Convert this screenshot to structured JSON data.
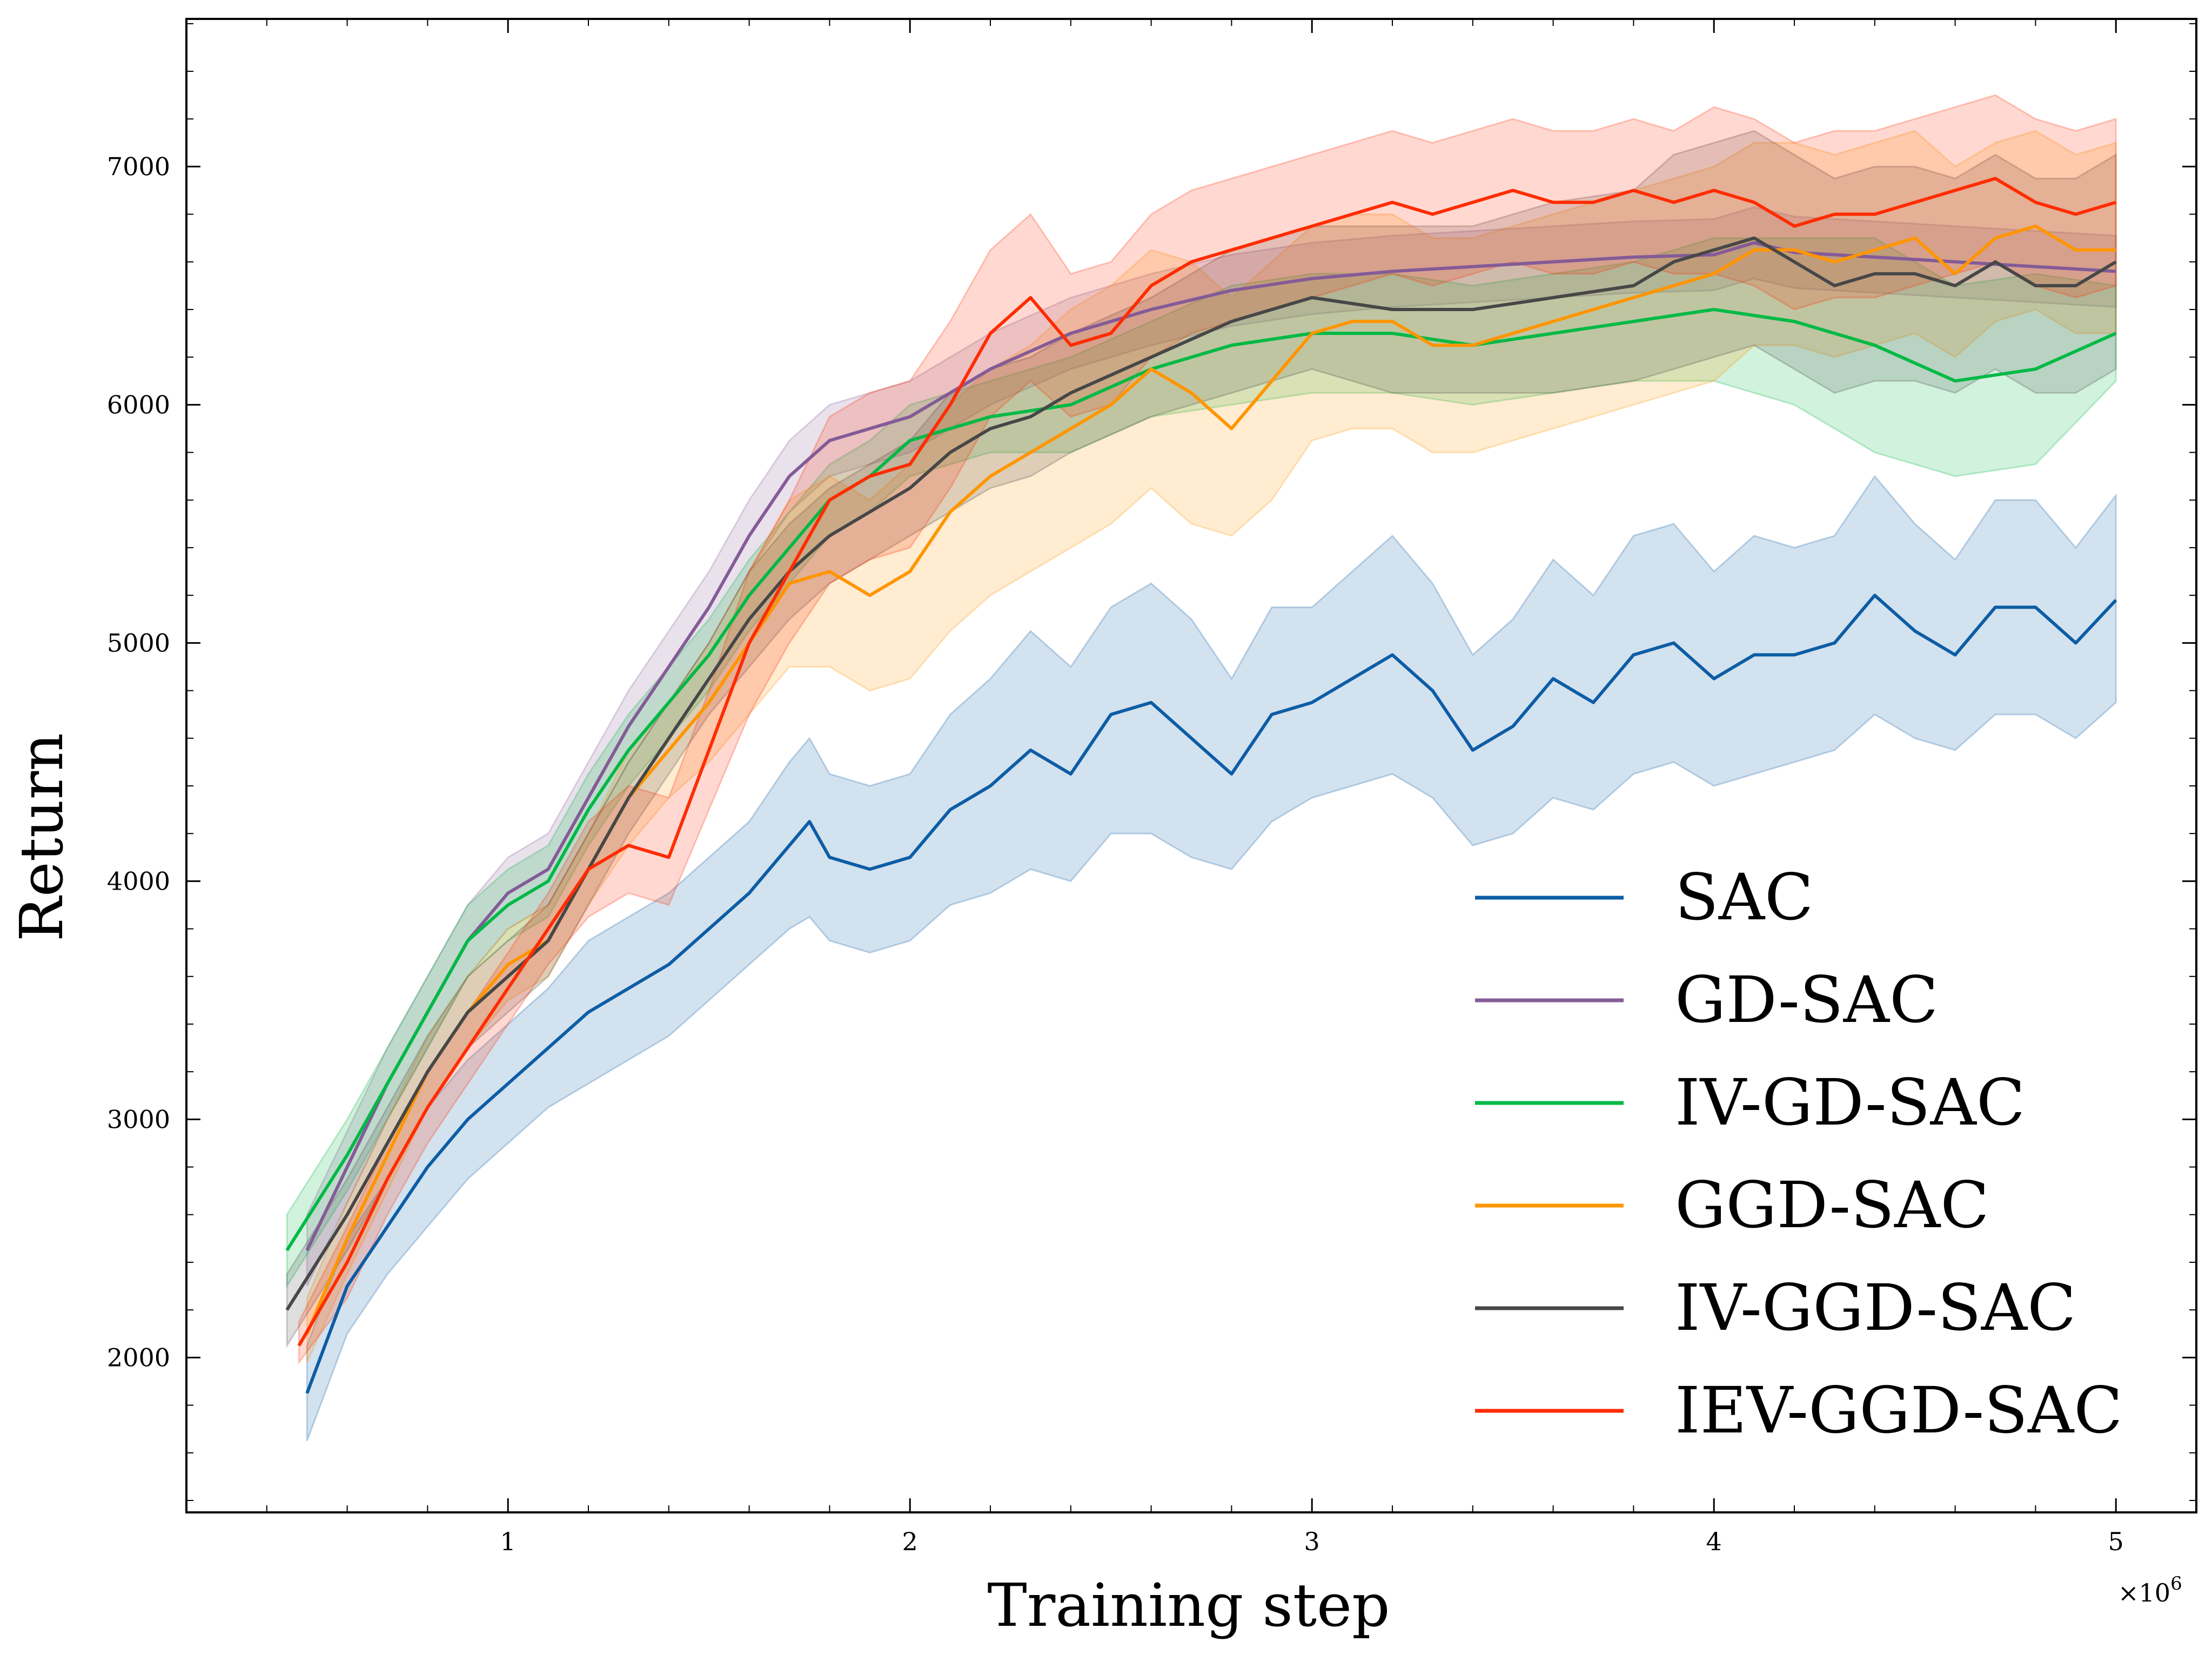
{
  "chart_data": {
    "type": "line",
    "title": "",
    "xlabel": "Training step",
    "ylabel": "Return",
    "x_multiplier_label": "×10^6",
    "xlim": [
      0.2,
      5.2
    ],
    "ylim": [
      1350,
      7620
    ],
    "x_ticks": [
      1,
      2,
      3,
      4,
      5
    ],
    "y_ticks": [
      2000,
      3000,
      4000,
      5000,
      6000,
      7000
    ],
    "grid": false,
    "legend_position": "lower-right",
    "shaded_band": "variability band around each mean curve",
    "series": [
      {
        "name": "SAC",
        "color": "#0c5da5",
        "x": [
          0.5,
          0.6,
          0.7,
          0.8,
          0.9,
          1.0,
          1.1,
          1.2,
          1.3,
          1.4,
          1.5,
          1.6,
          1.7,
          1.75,
          1.8,
          1.9,
          2.0,
          2.1,
          2.2,
          2.3,
          2.4,
          2.5,
          2.6,
          2.7,
          2.8,
          2.9,
          3.0,
          3.1,
          3.2,
          3.3,
          3.4,
          3.5,
          3.6,
          3.7,
          3.8,
          3.9,
          4.0,
          4.1,
          4.2,
          4.3,
          4.4,
          4.5,
          4.6,
          4.7,
          4.8,
          4.9,
          5.0
        ],
        "y": [
          1850,
          2300,
          2550,
          2800,
          3000,
          3150,
          3300,
          3450,
          3550,
          3650,
          3800,
          3950,
          4150,
          4250,
          4100,
          4050,
          4100,
          4300,
          4400,
          4550,
          4450,
          4700,
          4750,
          4600,
          4450,
          4700,
          4750,
          4850,
          4950,
          4800,
          4550,
          4650,
          4850,
          4750,
          4950,
          5000,
          4850,
          4950,
          4950,
          5000,
          5200,
          5050,
          4950,
          5150,
          5150,
          5000,
          5180
        ],
        "lower": [
          1650,
          2100,
          2350,
          2550,
          2750,
          2900,
          3050,
          3150,
          3250,
          3350,
          3500,
          3650,
          3800,
          3850,
          3750,
          3700,
          3750,
          3900,
          3950,
          4050,
          4000,
          4200,
          4200,
          4100,
          4050,
          4250,
          4350,
          4400,
          4450,
          4350,
          4150,
          4200,
          4350,
          4300,
          4450,
          4500,
          4400,
          4450,
          4500,
          4550,
          4700,
          4600,
          4550,
          4700,
          4700,
          4600,
          4750
        ],
        "upper": [
          2050,
          2500,
          2750,
          3050,
          3250,
          3400,
          3550,
          3750,
          3850,
          3950,
          4100,
          4250,
          4500,
          4600,
          4450,
          4400,
          4450,
          4700,
          4850,
          5050,
          4900,
          5150,
          5250,
          5100,
          4850,
          5150,
          5150,
          5300,
          5450,
          5250,
          4950,
          5100,
          5350,
          5200,
          5450,
          5500,
          5300,
          5450,
          5400,
          5450,
          5700,
          5500,
          5350,
          5600,
          5600,
          5400,
          5620
        ]
      },
      {
        "name": "GD-SAC",
        "color": "#845b97",
        "x": [
          0.5,
          0.6,
          0.7,
          0.8,
          0.9,
          1.0,
          1.1,
          1.2,
          1.3,
          1.4,
          1.5,
          1.6,
          1.7,
          1.8,
          1.9,
          2.0,
          2.2,
          2.4,
          2.6,
          2.8,
          3.0,
          3.2,
          3.4,
          3.6,
          3.8,
          4.0,
          4.1,
          4.2,
          4.4,
          4.6,
          4.8,
          5.0
        ],
        "y": [
          2450,
          2800,
          3150,
          3450,
          3750,
          3950,
          4050,
          4350,
          4650,
          4900,
          5150,
          5450,
          5700,
          5850,
          5900,
          5950,
          6150,
          6300,
          6400,
          6480,
          6530,
          6560,
          6580,
          6600,
          6620,
          6630,
          6680,
          6640,
          6620,
          6600,
          6580,
          6560
        ],
        "lower": [
          2300,
          2650,
          3000,
          3300,
          3600,
          3800,
          3900,
          4200,
          4500,
          4750,
          5000,
          5300,
          5550,
          5700,
          5750,
          5800,
          6000,
          6150,
          6250,
          6330,
          6380,
          6410,
          6430,
          6450,
          6470,
          6480,
          6530,
          6490,
          6470,
          6450,
          6430,
          6410
        ],
        "upper": [
          2600,
          2950,
          3300,
          3600,
          3900,
          4100,
          4200,
          4500,
          4800,
          5050,
          5300,
          5600,
          5850,
          6000,
          6050,
          6100,
          6300,
          6450,
          6550,
          6630,
          6680,
          6710,
          6730,
          6750,
          6770,
          6780,
          6830,
          6790,
          6770,
          6750,
          6730,
          6710
        ]
      },
      {
        "name": "IV-GD-SAC",
        "color": "#00b945",
        "x": [
          0.45,
          0.6,
          0.7,
          0.8,
          0.9,
          1.0,
          1.1,
          1.2,
          1.3,
          1.4,
          1.5,
          1.6,
          1.7,
          1.8,
          1.9,
          2.0,
          2.2,
          2.4,
          2.6,
          2.8,
          3.0,
          3.2,
          3.4,
          3.6,
          3.8,
          4.0,
          4.2,
          4.4,
          4.6,
          4.8,
          5.0
        ],
        "y": [
          2450,
          2850,
          3150,
          3450,
          3750,
          3900,
          4000,
          4300,
          4550,
          4750,
          4950,
          5200,
          5400,
          5600,
          5700,
          5850,
          5950,
          6000,
          6150,
          6250,
          6300,
          6300,
          6250,
          6300,
          6350,
          6400,
          6350,
          6250,
          6100,
          6150,
          6300
        ],
        "lower": [
          2300,
          2700,
          3000,
          3300,
          3600,
          3750,
          3850,
          4150,
          4400,
          4600,
          4800,
          5050,
          5250,
          5450,
          5550,
          5700,
          5800,
          5800,
          5950,
          6000,
          6050,
          6050,
          6000,
          6050,
          6100,
          6100,
          6000,
          5800,
          5700,
          5750,
          6100
        ],
        "upper": [
          2600,
          3000,
          3300,
          3600,
          3900,
          4050,
          4150,
          4450,
          4700,
          4900,
          5100,
          5350,
          5550,
          5750,
          5850,
          6000,
          6100,
          6200,
          6350,
          6500,
          6550,
          6550,
          6500,
          6550,
          6600,
          6700,
          6700,
          6700,
          6500,
          6550,
          6500
        ]
      },
      {
        "name": "GGD-SAC",
        "color": "#ff9500",
        "x": [
          0.5,
          0.6,
          0.7,
          0.8,
          0.9,
          1.0,
          1.1,
          1.2,
          1.3,
          1.4,
          1.5,
          1.6,
          1.7,
          1.8,
          1.9,
          2.0,
          2.1,
          2.2,
          2.3,
          2.4,
          2.5,
          2.6,
          2.7,
          2.8,
          2.9,
          3.0,
          3.1,
          3.2,
          3.3,
          3.4,
          3.5,
          3.6,
          3.7,
          3.8,
          3.9,
          4.0,
          4.1,
          4.2,
          4.3,
          4.4,
          4.5,
          4.6,
          4.7,
          4.8,
          4.9,
          5.0
        ],
        "y": [
          2100,
          2500,
          2850,
          3200,
          3450,
          3650,
          3750,
          4050,
          4350,
          4550,
          4750,
          5000,
          5250,
          5300,
          5200,
          5300,
          5550,
          5700,
          5800,
          5900,
          6000,
          6150,
          6050,
          5900,
          6100,
          6300,
          6350,
          6350,
          6250,
          6250,
          6300,
          6350,
          6400,
          6450,
          6500,
          6550,
          6650,
          6650,
          6600,
          6650,
          6700,
          6550,
          6700,
          6750,
          6650,
          6650
        ],
        "lower": [
          1980,
          2350,
          2700,
          3050,
          3300,
          3500,
          3600,
          3900,
          4150,
          4350,
          4500,
          4700,
          4900,
          4900,
          4800,
          4850,
          5050,
          5200,
          5300,
          5400,
          5500,
          5650,
          5500,
          5450,
          5600,
          5850,
          5900,
          5900,
          5800,
          5800,
          5850,
          5900,
          5950,
          6000,
          6050,
          6100,
          6250,
          6250,
          6200,
          6250,
          6300,
          6200,
          6350,
          6400,
          6300,
          6300
        ],
        "upper": [
          2250,
          2650,
          3000,
          3350,
          3600,
          3800,
          3900,
          4200,
          4550,
          4750,
          5000,
          5300,
          5600,
          5700,
          5600,
          5750,
          6000,
          6150,
          6250,
          6400,
          6500,
          6650,
          6600,
          6450,
          6600,
          6750,
          6800,
          6800,
          6700,
          6700,
          6750,
          6800,
          6850,
          6900,
          6950,
          7000,
          7100,
          7100,
          7050,
          7100,
          7150,
          7000,
          7100,
          7150,
          7050,
          7100
        ]
      },
      {
        "name": "IV-GGD-SAC",
        "color": "#474747",
        "x": [
          0.45,
          0.6,
          0.7,
          0.8,
          0.9,
          1.0,
          1.1,
          1.2,
          1.3,
          1.4,
          1.5,
          1.6,
          1.7,
          1.8,
          1.9,
          2.0,
          2.1,
          2.2,
          2.3,
          2.4,
          2.6,
          2.8,
          3.0,
          3.2,
          3.4,
          3.6,
          3.8,
          3.9,
          4.0,
          4.1,
          4.2,
          4.3,
          4.4,
          4.5,
          4.6,
          4.7,
          4.8,
          4.9,
          5.0
        ],
        "y": [
          2200,
          2600,
          2900,
          3200,
          3450,
          3600,
          3750,
          4050,
          4350,
          4600,
          4850,
          5100,
          5300,
          5450,
          5550,
          5650,
          5800,
          5900,
          5950,
          6050,
          6200,
          6350,
          6450,
          6400,
          6400,
          6450,
          6500,
          6600,
          6650,
          6700,
          6600,
          6500,
          6550,
          6550,
          6500,
          6600,
          6500,
          6500,
          6600
        ],
        "lower": [
          2050,
          2450,
          2750,
          3050,
          3300,
          3450,
          3600,
          3900,
          4200,
          4450,
          4700,
          4900,
          5100,
          5250,
          5350,
          5450,
          5550,
          5650,
          5700,
          5800,
          5950,
          6050,
          6150,
          6050,
          6050,
          6050,
          6100,
          6150,
          6200,
          6250,
          6150,
          6050,
          6100,
          6100,
          6050,
          6150,
          6050,
          6050,
          6150
        ],
        "upper": [
          2350,
          2750,
          3050,
          3350,
          3600,
          3750,
          3900,
          4200,
          4500,
          4750,
          5000,
          5300,
          5500,
          5650,
          5750,
          5850,
          6050,
          6150,
          6200,
          6300,
          6450,
          6650,
          6750,
          6750,
          6750,
          6850,
          6900,
          7050,
          7100,
          7150,
          7050,
          6950,
          7000,
          7000,
          6950,
          7050,
          6950,
          6950,
          7050
        ]
      },
      {
        "name": "IEV-GGD-SAC",
        "color": "#ff2c00",
        "x": [
          0.48,
          0.6,
          0.7,
          0.8,
          0.9,
          1.0,
          1.1,
          1.2,
          1.3,
          1.4,
          1.5,
          1.6,
          1.7,
          1.8,
          1.9,
          2.0,
          2.1,
          2.2,
          2.3,
          2.4,
          2.5,
          2.6,
          2.7,
          2.8,
          2.9,
          3.0,
          3.1,
          3.2,
          3.3,
          3.4,
          3.5,
          3.6,
          3.7,
          3.8,
          3.9,
          4.0,
          4.1,
          4.2,
          4.3,
          4.4,
          4.5,
          4.6,
          4.7,
          4.8,
          4.9,
          5.0
        ],
        "y": [
          2050,
          2400,
          2750,
          3050,
          3300,
          3550,
          3800,
          4050,
          4150,
          4100,
          4550,
          5000,
          5300,
          5600,
          5700,
          5750,
          6000,
          6300,
          6450,
          6250,
          6300,
          6500,
          6600,
          6650,
          6700,
          6750,
          6800,
          6850,
          6800,
          6850,
          6900,
          6850,
          6850,
          6900,
          6850,
          6900,
          6850,
          6750,
          6800,
          6800,
          6850,
          6900,
          6950,
          6850,
          6800,
          6850
        ],
        "lower": [
          1980,
          2250,
          2600,
          2900,
          3150,
          3400,
          3650,
          3850,
          3950,
          3900,
          4300,
          4700,
          5000,
          5250,
          5350,
          5400,
          5650,
          5950,
          6100,
          5950,
          6000,
          6200,
          6300,
          6350,
          6400,
          6450,
          6500,
          6550,
          6500,
          6550,
          6600,
          6550,
          6550,
          6600,
          6550,
          6550,
          6500,
          6400,
          6450,
          6450,
          6500,
          6550,
          6600,
          6500,
          6450,
          6500
        ],
        "upper": [
          2150,
          2550,
          2900,
          3200,
          3450,
          3700,
          3950,
          4250,
          4400,
          4350,
          4800,
          5300,
          5600,
          5950,
          6050,
          6100,
          6350,
          6650,
          6800,
          6550,
          6600,
          6800,
          6900,
          6950,
          7000,
          7050,
          7100,
          7150,
          7100,
          7150,
          7200,
          7150,
          7150,
          7200,
          7150,
          7250,
          7200,
          7100,
          7150,
          7150,
          7200,
          7250,
          7300,
          7200,
          7150,
          7200
        ]
      }
    ]
  }
}
